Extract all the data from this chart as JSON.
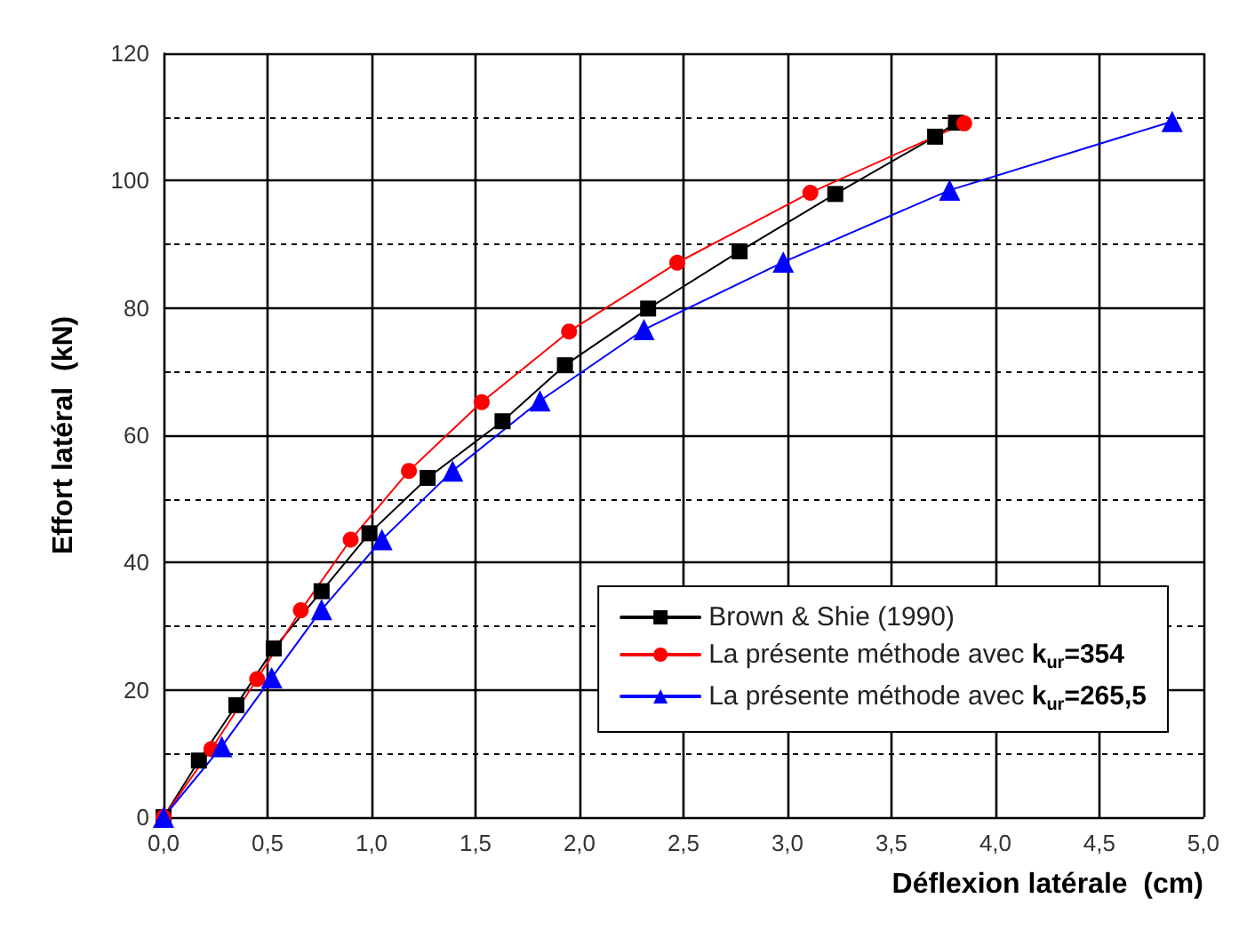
{
  "chart_data": {
    "type": "line",
    "xlabel": "Déflexion latérale  (cm)",
    "ylabel": "Effort latéral  (kN)",
    "xlim": [
      0,
      5
    ],
    "xticks": [
      {
        "value": 0,
        "label": "0,0"
      },
      {
        "value": 0.5,
        "label": "0,5"
      },
      {
        "value": 1,
        "label": "1,0"
      },
      {
        "value": 1.5,
        "label": "1,5"
      },
      {
        "value": 2,
        "label": "2,0"
      },
      {
        "value": 2.5,
        "label": "2,5"
      },
      {
        "value": 3,
        "label": "3,0"
      },
      {
        "value": 3.5,
        "label": "3,5"
      },
      {
        "value": 4,
        "label": "4,0"
      },
      {
        "value": 4.5,
        "label": "4,5"
      },
      {
        "value": 5,
        "label": "5,0"
      }
    ],
    "ylim": [
      0,
      120
    ],
    "yticks": [
      0,
      20,
      40,
      60,
      80,
      100,
      120
    ],
    "grid": true,
    "legend": "bottom right",
    "series": [
      {
        "name": "Brown & Shie (1990)",
        "color": "#000000",
        "marker": "square",
        "x": [
          0,
          0.17,
          0.35,
          0.53,
          0.76,
          0.99,
          1.27,
          1.63,
          1.93,
          2.33,
          2.77,
          3.23,
          3.71,
          3.81
        ],
        "values": [
          0,
          8.9,
          17.6,
          26.5,
          35.5,
          44.6,
          53.3,
          62.2,
          71,
          79.9,
          88.9,
          97.9,
          106.9,
          109.1
        ]
      },
      {
        "name": "La présente méthode avec k$_{ur}$=354",
        "color": "#ff0000",
        "marker": "circle",
        "x": [
          0,
          0.23,
          0.45,
          0.66,
          0.9,
          1.18,
          1.53,
          1.95,
          2.47,
          3.11,
          3.85
        ],
        "values": [
          0,
          10.7,
          21.7,
          32.5,
          43.6,
          54.4,
          65.2,
          76.3,
          87.1,
          98.1,
          109
        ]
      },
      {
        "name": "La présente méthode avec k$_{ur}$=265,5",
        "color": "#0000ff",
        "marker": "triangle",
        "x": [
          0,
          0.28,
          0.52,
          0.76,
          1.05,
          1.39,
          1.81,
          2.31,
          2.98,
          3.78,
          4.85
        ],
        "values": [
          0,
          11.1,
          21.9,
          32.6,
          43.6,
          54.4,
          65.4,
          76.6,
          87.2,
          98.5,
          109.3
        ]
      }
    ]
  }
}
